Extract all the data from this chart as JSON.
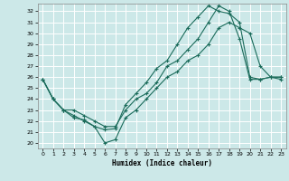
{
  "xlabel": "Humidex (Indice chaleur)",
  "bg_color": "#cce8e8",
  "grid_color": "#ffffff",
  "line_color": "#1a6b5a",
  "xlim": [
    -0.5,
    23.5
  ],
  "ylim": [
    19.5,
    32.7
  ],
  "yticks": [
    20,
    21,
    22,
    23,
    24,
    25,
    26,
    27,
    28,
    29,
    30,
    31,
    32
  ],
  "xticks": [
    0,
    1,
    2,
    3,
    4,
    5,
    6,
    7,
    8,
    9,
    10,
    11,
    12,
    13,
    14,
    15,
    16,
    17,
    18,
    19,
    20,
    21,
    22,
    23
  ],
  "line1_x": [
    0,
    1,
    2,
    3,
    4,
    5,
    6,
    7,
    8,
    9,
    10,
    11,
    12,
    13,
    14,
    15,
    16,
    17,
    18,
    19,
    20,
    21,
    22,
    23
  ],
  "line1_y": [
    25.8,
    24.0,
    23.0,
    22.3,
    22.1,
    21.5,
    20.0,
    20.3,
    22.3,
    23.0,
    24.0,
    25.0,
    26.0,
    26.5,
    27.5,
    28.0,
    29.0,
    30.5,
    31.0,
    30.5,
    30.0,
    27.0,
    26.0,
    25.8
  ],
  "line2_x": [
    0,
    1,
    2,
    3,
    4,
    5,
    6,
    7,
    8,
    9,
    10,
    11,
    12,
    13,
    14,
    15,
    16,
    17,
    18,
    19,
    20,
    21,
    22,
    23
  ],
  "line2_y": [
    25.8,
    24.0,
    23.0,
    22.5,
    22.0,
    21.5,
    21.2,
    21.3,
    23.5,
    24.5,
    25.5,
    26.8,
    27.5,
    29.0,
    30.5,
    31.5,
    32.5,
    32.0,
    31.8,
    31.0,
    26.0,
    25.8,
    26.0,
    26.0
  ],
  "line3_x": [
    0,
    1,
    2,
    3,
    4,
    5,
    6,
    7,
    8,
    9,
    10,
    11,
    12,
    13,
    14,
    15,
    16,
    17,
    18,
    19,
    20,
    21,
    22,
    23
  ],
  "line3_y": [
    25.8,
    24.0,
    23.0,
    23.0,
    22.5,
    22.0,
    21.5,
    21.5,
    23.0,
    24.0,
    24.5,
    25.5,
    27.0,
    27.5,
    28.5,
    29.5,
    31.0,
    32.5,
    32.0,
    29.5,
    25.8,
    25.8,
    26.0,
    26.0
  ]
}
